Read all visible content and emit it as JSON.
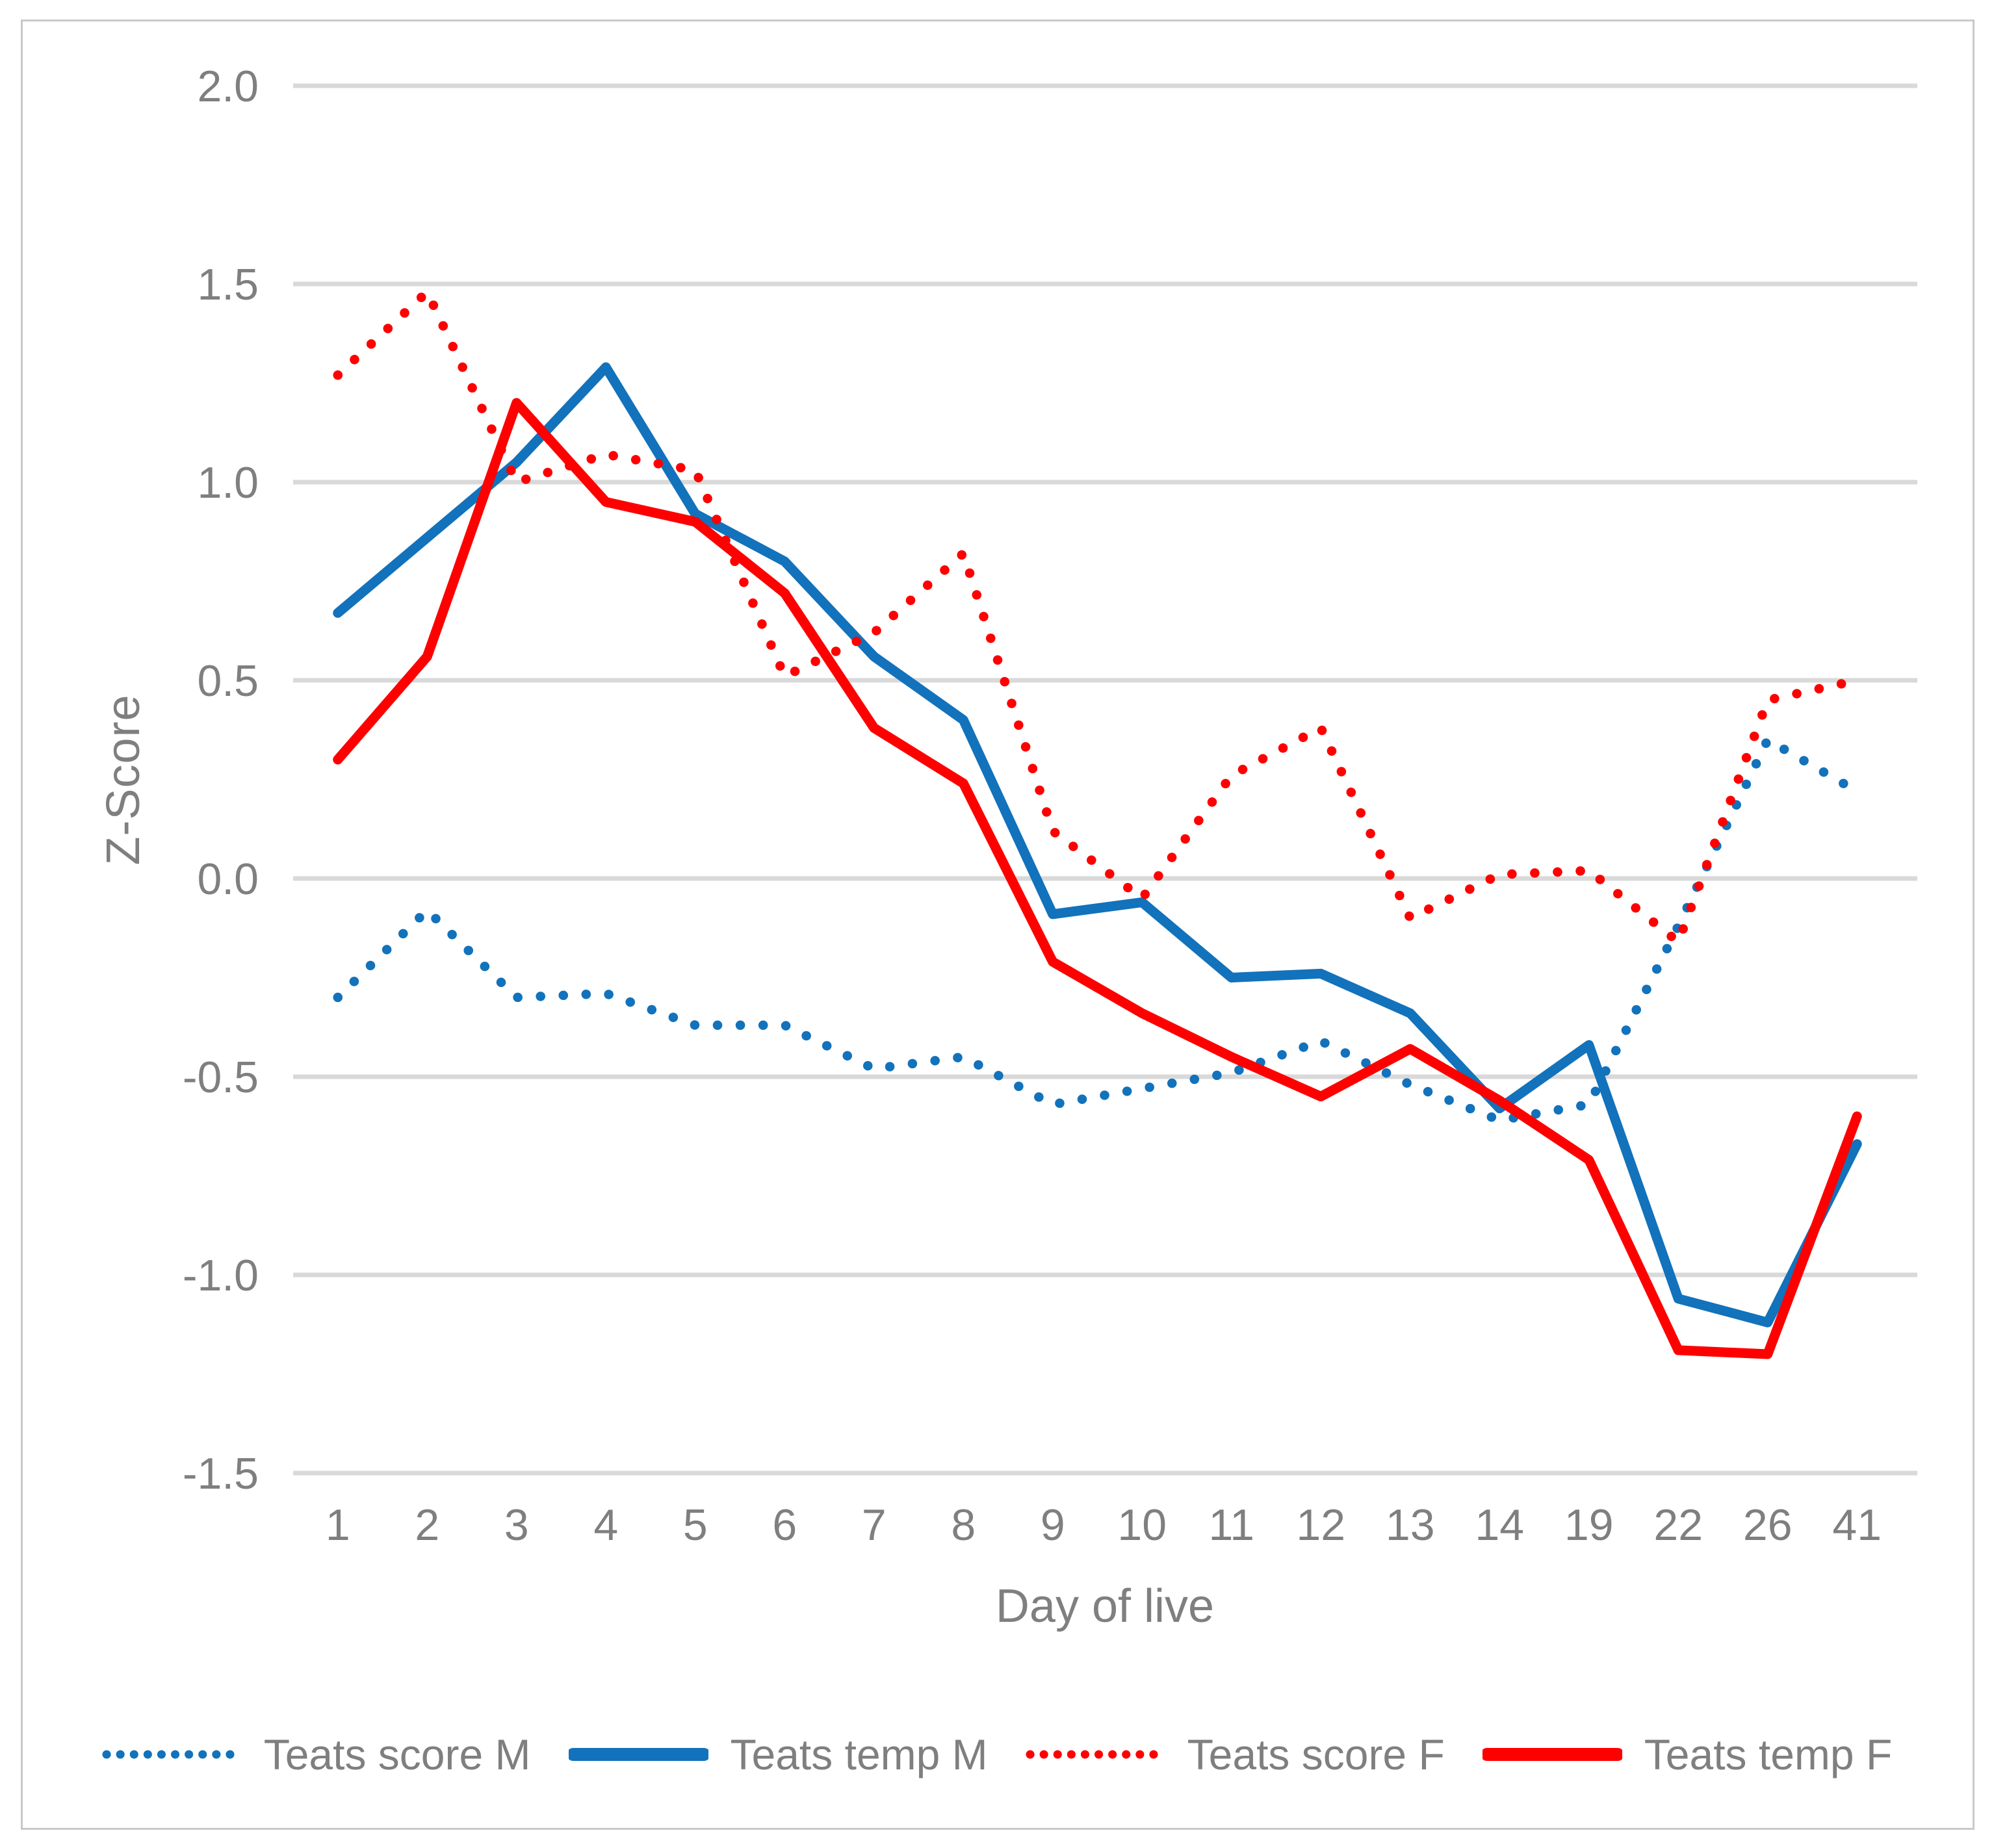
{
  "figure": {
    "background": "#ffffff",
    "border_color": "#c9c9c9"
  },
  "chart_data": {
    "type": "line",
    "title": "",
    "xlabel": "Day of live",
    "ylabel": "Z-Score",
    "categories": [
      "1",
      "2",
      "3",
      "4",
      "5",
      "6",
      "7",
      "8",
      "9",
      "10",
      "11",
      "12",
      "13",
      "14",
      "19",
      "22",
      "26",
      "41"
    ],
    "series": [
      {
        "name": "Teats score M",
        "color": "#1272bb",
        "style": "dotted",
        "values": [
          -0.3,
          -0.08,
          -0.3,
          -0.29,
          -0.37,
          -0.37,
          -0.48,
          -0.45,
          -0.57,
          -0.53,
          -0.49,
          -0.41,
          -0.52,
          -0.61,
          -0.57,
          -0.12,
          0.35,
          0.22
        ]
      },
      {
        "name": "Teats temp M",
        "color": "#1272bb",
        "style": "solid",
        "values": [
          0.67,
          0.86,
          1.05,
          1.29,
          0.92,
          0.8,
          0.56,
          0.4,
          -0.09,
          -0.06,
          -0.25,
          -0.24,
          -0.34,
          -0.58,
          -0.42,
          -1.06,
          -1.12,
          -0.67
        ]
      },
      {
        "name": "Teats score F",
        "color": "#fe0000",
        "style": "dotted",
        "values": [
          1.27,
          1.48,
          1.0,
          1.07,
          1.03,
          0.51,
          0.62,
          0.82,
          0.12,
          -0.05,
          0.26,
          0.38,
          -0.1,
          0.01,
          0.02,
          -0.16,
          0.45,
          0.5
        ]
      },
      {
        "name": "Teats temp F",
        "color": "#fe0000",
        "style": "solid",
        "values": [
          0.3,
          0.56,
          1.2,
          0.95,
          0.9,
          0.72,
          0.38,
          0.24,
          -0.21,
          -0.34,
          -0.45,
          -0.55,
          -0.43,
          -0.56,
          -0.71,
          -1.19,
          -1.2,
          -0.6
        ]
      }
    ],
    "ylim": [
      -1.5,
      2.0
    ],
    "y_ticks": [
      2.0,
      1.5,
      1.0,
      0.5,
      0.0,
      -0.5,
      -1.0,
      -1.5
    ],
    "y_tick_labels": [
      "2.0",
      "1.5",
      "1.0",
      "0.5",
      "0.0",
      "-0.5",
      "-1.0",
      "-1.5"
    ],
    "grid": true,
    "gridline_color": "#d9d9d9",
    "text_color": "#7f7f7f",
    "legend_position": "bottom"
  }
}
